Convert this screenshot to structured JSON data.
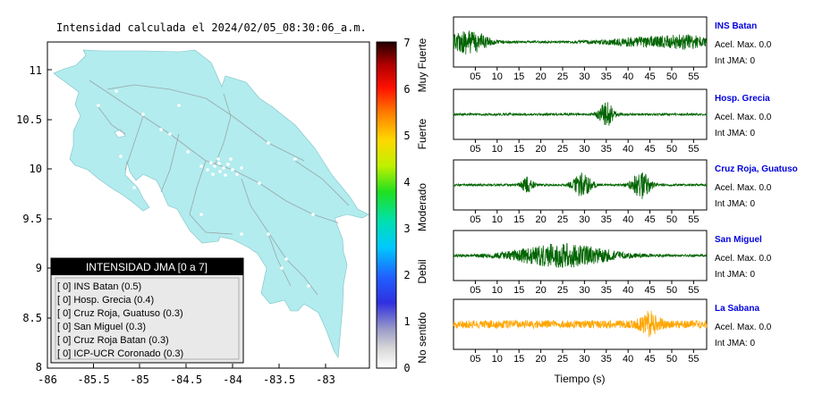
{
  "map": {
    "title": "Intensidad calculada el 2024/02/05_08:30:06_a.m.",
    "x_ticks": [
      "-86",
      "-85.5",
      "-85",
      "-84.5",
      "-84",
      "-83.5",
      "-83"
    ],
    "y_ticks": [
      "11",
      "10.5",
      "10",
      "9.5",
      "9",
      "8.5",
      "8"
    ],
    "land_color": "#b2ecee"
  },
  "legend": {
    "header": "INTENSIDAD JMA [0 a 7]",
    "items": [
      "[ 0] INS Batan (0.5)",
      "[ 0] Hosp. Grecia (0.4)",
      "[ 0] Cruz Roja, Guatuso (0.3)",
      "[ 0] San Miguel (0.3)",
      "[ 0] Cruz Roja Batan (0.3)",
      "[ 0] ICP-UCR Coronado (0.3)"
    ]
  },
  "colorbar": {
    "ticks": [
      "7",
      "6",
      "5",
      "4",
      "3",
      "2",
      "1",
      "0"
    ],
    "labels": [
      "Muy Fuerte",
      "Fuerte",
      "Moderado",
      "Debil",
      "No sentido"
    ]
  },
  "chart_data": {
    "type": "line",
    "xlabel": "Tiempo (s)",
    "x_ticks": [
      "05",
      "10",
      "15",
      "20",
      "25",
      "30",
      "35",
      "40",
      "45",
      "50",
      "55"
    ],
    "xlim": [
      0,
      58
    ],
    "stations": [
      {
        "name": "INS Batan",
        "acel_max": "Acel. Max. 0.0",
        "int_jma": "Int JMA: 0",
        "color": "#006400",
        "bursts": [
          [
            3.5,
            14,
            3
          ],
          [
            46.5,
            6,
            8
          ],
          [
            54,
            4,
            3
          ]
        ]
      },
      {
        "name": "Hosp. Grecia",
        "acel_max": "Acel. Max. 0.0",
        "int_jma": "Int JMA: 0",
        "color": "#006400",
        "bursts": [
          [
            35,
            14,
            1.2
          ]
        ]
      },
      {
        "name": "Cruz Roja, Guatuso",
        "acel_max": "Acel. Max. 0.0",
        "int_jma": "Int JMA: 0",
        "color": "#006400",
        "bursts": [
          [
            17,
            9,
            1
          ],
          [
            29.5,
            14,
            1.5
          ],
          [
            43,
            16,
            1.5
          ]
        ]
      },
      {
        "name": "San Miguel",
        "acel_max": "Acel. Max. 0.0",
        "int_jma": "Int JMA: 0",
        "color": "#006400",
        "bursts": [
          [
            25,
            14,
            8
          ]
        ]
      },
      {
        "name": "La Sabana",
        "acel_max": "Acel. Max. 0.0",
        "int_jma": "Int JMA: 0",
        "color": "#ffa500",
        "bursts": [
          [
            45,
            12,
            1.5
          ]
        ]
      }
    ]
  }
}
